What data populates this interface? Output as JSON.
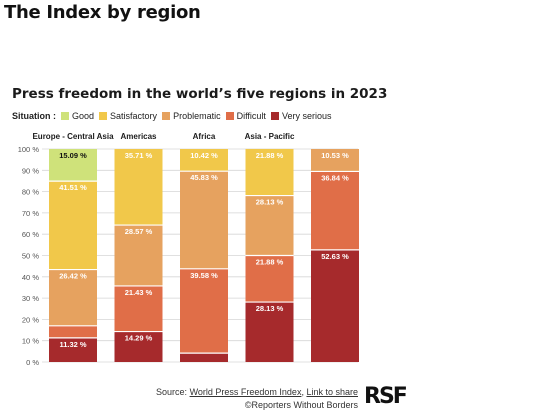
{
  "page": {
    "heading": "The Index by region"
  },
  "chart_data": {
    "type": "bar",
    "stacked": true,
    "title": "Press freedom in the world’s five regions in 2023",
    "legend_title": "Situation :",
    "categories": [
      "Europe - Central Asia",
      "Americas",
      "Africa",
      "Asia - Pacific",
      ""
    ],
    "series": [
      {
        "name": "Very serious",
        "color": "#a62a2c",
        "values": [
          11.32,
          14.29,
          4.17,
          28.13,
          52.63
        ]
      },
      {
        "name": "Difficult",
        "color": "#e06e48",
        "values": [
          5.66,
          21.43,
          39.58,
          21.88,
          36.84
        ]
      },
      {
        "name": "Problematic",
        "color": "#e6a25f",
        "values": [
          26.42,
          28.57,
          45.83,
          28.13,
          10.53
        ]
      },
      {
        "name": "Satisfactory",
        "color": "#f1c84a",
        "values": [
          41.51,
          35.71,
          10.42,
          21.88,
          0
        ]
      },
      {
        "name": "Good",
        "color": "#cfe27a",
        "values": [
          15.09,
          0,
          0,
          0,
          0
        ]
      }
    ],
    "legend_order": [
      "Good",
      "Satisfactory",
      "Problematic",
      "Difficult",
      "Very serious"
    ],
    "data_labels": [
      [
        {
          "series": "Good",
          "text": "15.09 %"
        },
        {
          "series": "Satisfactory",
          "text": "41.51 %"
        },
        {
          "series": "Problematic",
          "text": "26.42 %"
        },
        {
          "series": "Very serious",
          "text": "11.32 %"
        }
      ],
      [
        {
          "series": "Satisfactory",
          "text": "35.71 %"
        },
        {
          "series": "Problematic",
          "text": "28.57 %"
        },
        {
          "series": "Difficult",
          "text": "21.43 %"
        },
        {
          "series": "Very serious",
          "text": "14.29 %"
        }
      ],
      [
        {
          "series": "Satisfactory",
          "text": "10.42 %"
        },
        {
          "series": "Problematic",
          "text": "45.83 %"
        },
        {
          "series": "Difficult",
          "text": "39.58 %"
        }
      ],
      [
        {
          "series": "Satisfactory",
          "text": "21.88 %"
        },
        {
          "series": "Problematic",
          "text": "28.13 %"
        },
        {
          "series": "Difficult",
          "text": "21.88 %"
        },
        {
          "series": "Very serious",
          "text": "28.13 %"
        }
      ],
      [
        {
          "series": "Problematic",
          "text": "10.53 %"
        },
        {
          "series": "Difficult",
          "text": "36.84 %"
        },
        {
          "series": "Very serious",
          "text": "52.63 %"
        }
      ]
    ],
    "ylim": [
      0,
      100
    ],
    "y_ticks": [
      0,
      10,
      20,
      30,
      40,
      50,
      60,
      70,
      80,
      90,
      100
    ],
    "y_tick_labels": [
      "0 %",
      "10 %",
      "20 %",
      "30 %",
      "40 %",
      "50 %",
      "60 %",
      "70 %",
      "80 %",
      "90 %",
      "100 %"
    ],
    "grid": true,
    "legend_position": "top-left"
  },
  "footer": {
    "source_prefix": "Source: ",
    "source_link": "World Press Freedom Index",
    "separator": ", ",
    "share_link": "Link to share",
    "copyright": "©Reporters Without Borders"
  },
  "logo": {
    "text": "RSF"
  }
}
